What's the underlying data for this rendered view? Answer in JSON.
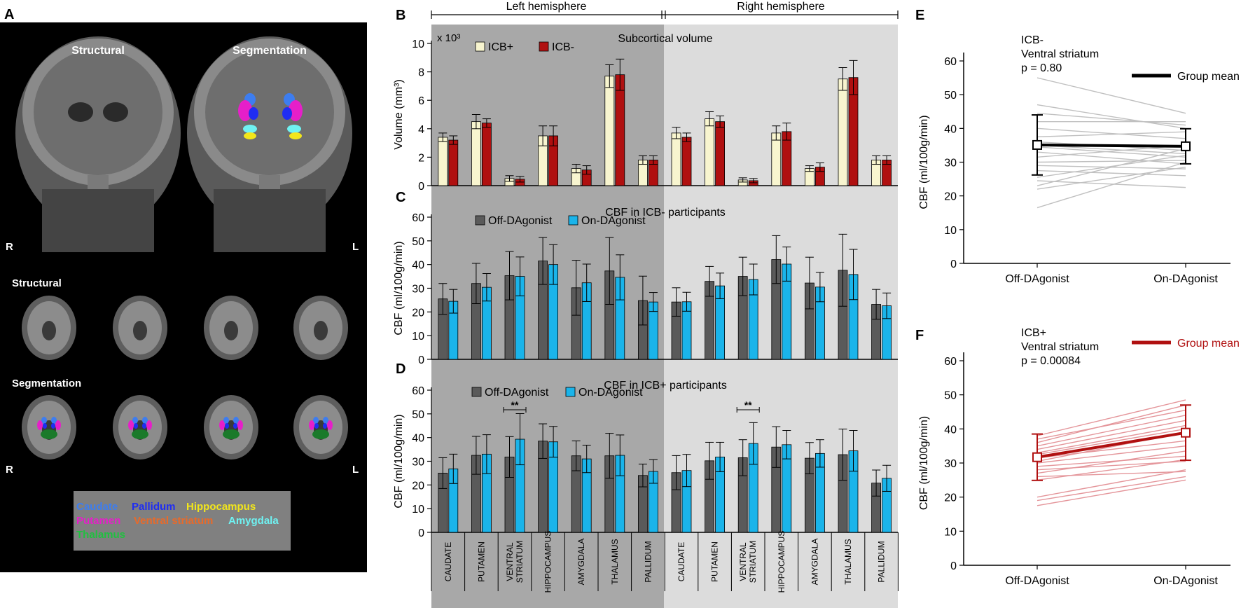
{
  "colors": {
    "icb_plus": "#f8f5cf",
    "icb_minus": "#b01010",
    "off": "#5a5a5a",
    "on": "#1ab4ea",
    "shade_left": "#a8a8a8",
    "shade_right": "#dcdcdc",
    "individual_e": "#c0c0c0",
    "individual_f": "#e4959a",
    "mean_f": "#b01010",
    "leg_caudate": "#3d7df0",
    "leg_pallidum": "#1f2df2",
    "leg_hippocampus": "#f2e61b",
    "leg_putamen": "#e61fc9",
    "leg_ventral": "#e86a2a",
    "leg_amygdala": "#6ff2f2",
    "leg_thalamus": "#20c040"
  },
  "panelA": {
    "letter": "A",
    "coronal_structural": "Structural",
    "coronal_segmentation": "Segmentation",
    "orient_r": "R",
    "orient_l": "L",
    "axial_structural": "Structural",
    "axial_segmentation": "Segmentation",
    "legend": {
      "caudate": "Caudate",
      "pallidum": "Pallidum",
      "hippocampus": "Hippocampus",
      "putamen": "Putamen",
      "ventral": "Ventral striatum",
      "amygdala": "Amygdala",
      "thalamus": "Thalamus"
    }
  },
  "hemispheres": {
    "left": "Left hemisphere",
    "right": "Right hemisphere"
  },
  "regions": [
    "CAUDATE",
    "PUTAMEN",
    "VENTRAL STRIATUM",
    "HIPPOCAMPUS",
    "AMYGDALA",
    "THALAMUS",
    "PALLIDUM",
    "CAUDATE",
    "PUTAMEN",
    "VENTRAL STRIATUM",
    "HIPPOCAMPUS",
    "AMYGDALA",
    "THALAMUS",
    "PALLIDUM"
  ],
  "chart_data": [
    {
      "id": "B",
      "type": "bar",
      "title": "Subcortical volume",
      "ylabel": "Volume (mm³)",
      "multiplier": "x 10³",
      "ylim": [
        0,
        10
      ],
      "yticks": [
        "0",
        "2",
        "4",
        "6",
        "8",
        "10"
      ],
      "series": [
        {
          "name": "ICB+",
          "values": [
            3.4,
            4.5,
            0.5,
            3.5,
            1.2,
            7.7,
            1.8,
            3.7,
            4.7,
            0.4,
            3.7,
            1.2,
            7.5,
            1.8
          ],
          "errors": [
            0.3,
            0.5,
            0.2,
            0.7,
            0.3,
            0.8,
            0.3,
            0.4,
            0.5,
            0.15,
            0.5,
            0.2,
            0.8,
            0.3
          ]
        },
        {
          "name": "ICB-",
          "values": [
            3.2,
            4.4,
            0.45,
            3.5,
            1.1,
            7.8,
            1.8,
            3.4,
            4.5,
            0.35,
            3.8,
            1.3,
            7.6,
            1.8
          ],
          "errors": [
            0.3,
            0.3,
            0.2,
            0.7,
            0.3,
            1.1,
            0.3,
            0.3,
            0.4,
            0.15,
            0.6,
            0.3,
            1.2,
            0.3
          ]
        }
      ]
    },
    {
      "id": "C",
      "type": "bar",
      "title": "CBF in ICB- participants",
      "ylabel": "CBF (ml/100g/min)",
      "ylim": [
        0,
        60
      ],
      "yticks": [
        "0",
        "10",
        "20",
        "30",
        "40",
        "50",
        "60"
      ],
      "series": [
        {
          "name": "Off-DAgonist",
          "values": [
            25.5,
            32,
            35.3,
            41.5,
            30.2,
            37.3,
            24.8,
            24.2,
            32.9,
            35,
            42.1,
            32.2,
            37.6,
            23.2
          ],
          "errors": [
            6.5,
            8.5,
            10.2,
            9.9,
            11.6,
            14.1,
            10.3,
            6,
            6.3,
            8.1,
            10.1,
            10.9,
            15.2,
            6.3
          ]
        },
        {
          "name": "On-DAgonist",
          "values": [
            24.5,
            30.4,
            35,
            40,
            32.3,
            34.6,
            24.2,
            24.3,
            31,
            33.7,
            40.2,
            30.5,
            35.8,
            22.6
          ],
          "errors": [
            5,
            5.8,
            8.2,
            8.4,
            7.9,
            9.5,
            4,
            4,
            5.4,
            6.5,
            7.2,
            6.2,
            10.6,
            5.4
          ]
        }
      ]
    },
    {
      "id": "D",
      "type": "bar",
      "title": "CBF in ICB+ participants",
      "ylabel": "CBF (ml/100g/min)",
      "ylim": [
        0,
        60
      ],
      "yticks": [
        "0",
        "10",
        "20",
        "30",
        "40",
        "50",
        "60"
      ],
      "significance": [
        {
          "region_index": 2,
          "label": "**"
        },
        {
          "region_index": 9,
          "label": "**"
        }
      ],
      "series": [
        {
          "name": "Off-DAgonist",
          "values": [
            25,
            32.5,
            31.8,
            38.5,
            32.3,
            32.3,
            24,
            25.2,
            30.2,
            31.5,
            36,
            31.3,
            32.8,
            20.8
          ],
          "errors": [
            6.5,
            8,
            8.6,
            7.3,
            6.3,
            9.5,
            4.8,
            7.2,
            7.8,
            7.6,
            8.6,
            6.6,
            10.8,
            5.5
          ]
        },
        {
          "name": "On-DAgonist",
          "values": [
            26.8,
            33,
            39.3,
            38.2,
            31,
            32.5,
            25.7,
            26.1,
            31.8,
            37.5,
            37,
            33.3,
            34.4,
            22.8
          ],
          "errors": [
            6.2,
            8.2,
            10.8,
            6.5,
            5.8,
            8.6,
            5,
            6.8,
            6.2,
            8.8,
            6,
            5.8,
            8.6,
            5.5
          ]
        }
      ]
    },
    {
      "id": "E",
      "type": "line",
      "title": "ICB-",
      "subtitle": "Ventral striatum",
      "pvalue": "p = 0.80",
      "legend": "Group mean",
      "ylabel": "CBF (ml/100g/min)",
      "ylim": [
        0,
        60
      ],
      "yticks": [
        "0",
        "10",
        "20",
        "30",
        "40",
        "50",
        "60"
      ],
      "categories": [
        "Off-DAgonist",
        "On-DAgonist"
      ],
      "mean": [
        35.1,
        34.7
      ],
      "mean_errors": [
        8.9,
        5.2
      ],
      "individual": [
        [
          55,
          44.5
        ],
        [
          47,
          40
        ],
        [
          44.5,
          41
        ],
        [
          42,
          42
        ],
        [
          40,
          37
        ],
        [
          37.5,
          39
        ],
        [
          36,
          33.5
        ],
        [
          35,
          32.5
        ],
        [
          34.5,
          31.5
        ],
        [
          33,
          29.5
        ],
        [
          31.5,
          35
        ],
        [
          30,
          30.5
        ],
        [
          29,
          28
        ],
        [
          27.5,
          26
        ],
        [
          25.5,
          32
        ],
        [
          24.5,
          22.5
        ],
        [
          23,
          34
        ],
        [
          22,
          28.5
        ],
        [
          16.5,
          30
        ]
      ]
    },
    {
      "id": "F",
      "type": "line",
      "title": "ICB+",
      "subtitle": "Ventral striatum",
      "pvalue": "p = 0.00084",
      "legend": "Group mean",
      "ylabel": "CBF (ml/100g/min)",
      "ylim": [
        0,
        60
      ],
      "yticks": [
        "0",
        "10",
        "20",
        "30",
        "40",
        "50",
        "60"
      ],
      "categories": [
        "Off-DAgonist",
        "On-DAgonist"
      ],
      "mean": [
        31.7,
        38.9
      ],
      "mean_errors": [
        6.8,
        8.1
      ],
      "individual": [
        [
          38,
          48.5
        ],
        [
          37,
          45.5
        ],
        [
          36,
          47
        ],
        [
          35,
          44
        ],
        [
          34,
          42.5
        ],
        [
          33,
          41
        ],
        [
          32.5,
          40
        ],
        [
          31.5,
          36.5
        ],
        [
          30.5,
          39
        ],
        [
          30,
          35
        ],
        [
          29,
          32
        ],
        [
          28,
          30.5
        ],
        [
          27,
          33.5
        ],
        [
          26,
          27.5
        ],
        [
          25,
          31
        ],
        [
          20,
          28
        ],
        [
          19,
          26
        ],
        [
          17.5,
          25
        ]
      ]
    }
  ]
}
